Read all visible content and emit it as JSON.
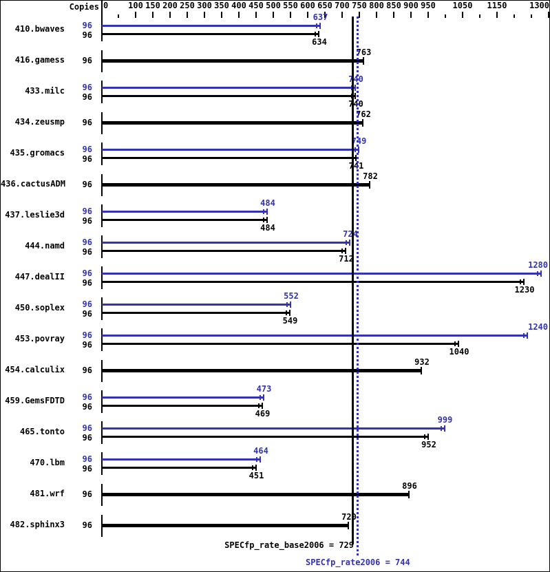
{
  "header": {
    "copies_label": "Copies"
  },
  "colors": {
    "peak_blue": "#3333b3",
    "base_black": "#000000",
    "background": "#ffffff"
  },
  "chart_data": {
    "type": "bar",
    "orientation": "horizontal",
    "title": "",
    "xlabel": "",
    "ylabel": "Copies",
    "xlim": [
      0,
      1300
    ],
    "grid": false,
    "legend_position": "none",
    "x_axis": {
      "major_ticks": [
        0,
        100,
        150,
        200,
        250,
        300,
        350,
        400,
        450,
        500,
        550,
        600,
        650,
        700,
        750,
        800,
        850,
        900,
        950,
        1050,
        1150,
        1300
      ],
      "minor_ticks": [
        50,
        1000,
        1100,
        1200,
        1250
      ]
    },
    "series": [
      {
        "name": "peak",
        "color": "#3333b3"
      },
      {
        "name": "base",
        "color": "#000000"
      }
    ],
    "rows": [
      {
        "name": "410.bwaves",
        "copies": 96,
        "peak": 637,
        "base": 634
      },
      {
        "name": "416.gamess",
        "copies": 96,
        "base": 763
      },
      {
        "name": "433.milc",
        "copies": 96,
        "peak": 740,
        "base": 740
      },
      {
        "name": "434.zeusmp",
        "copies": 96,
        "base": 762
      },
      {
        "name": "435.gromacs",
        "copies": 96,
        "peak": 749,
        "base": 741
      },
      {
        "name": "436.cactusADM",
        "copies": 96,
        "base": 782
      },
      {
        "name": "437.leslie3d",
        "copies": 96,
        "peak": 484,
        "base": 484
      },
      {
        "name": "444.namd",
        "copies": 96,
        "peak": 724,
        "base": 712
      },
      {
        "name": "447.dealII",
        "copies": 96,
        "peak": 1280,
        "base": 1230
      },
      {
        "name": "450.soplex",
        "copies": 96,
        "peak": 552,
        "base": 549
      },
      {
        "name": "453.povray",
        "copies": 96,
        "peak": 1240,
        "base": 1040
      },
      {
        "name": "454.calculix",
        "copies": 96,
        "base": 932
      },
      {
        "name": "459.GemsFDTD",
        "copies": 96,
        "peak": 473,
        "base": 469
      },
      {
        "name": "465.tonto",
        "copies": 96,
        "peak": 999,
        "base": 952
      },
      {
        "name": "470.lbm",
        "copies": 96,
        "peak": 464,
        "base": 451
      },
      {
        "name": "481.wrf",
        "copies": 96,
        "base": 896
      },
      {
        "name": "482.sphinx3",
        "copies": 96,
        "base": 720
      }
    ],
    "reference_lines": [
      {
        "name": "base_median",
        "value": 729,
        "style": "solid",
        "color": "#000000",
        "label": "SPECfp_rate_base2006 = 729"
      },
      {
        "name": "peak_median",
        "value": 744,
        "style": "dotted",
        "color": "#3333b3",
        "label": "SPECfp_rate2006 = 744"
      }
    ]
  }
}
